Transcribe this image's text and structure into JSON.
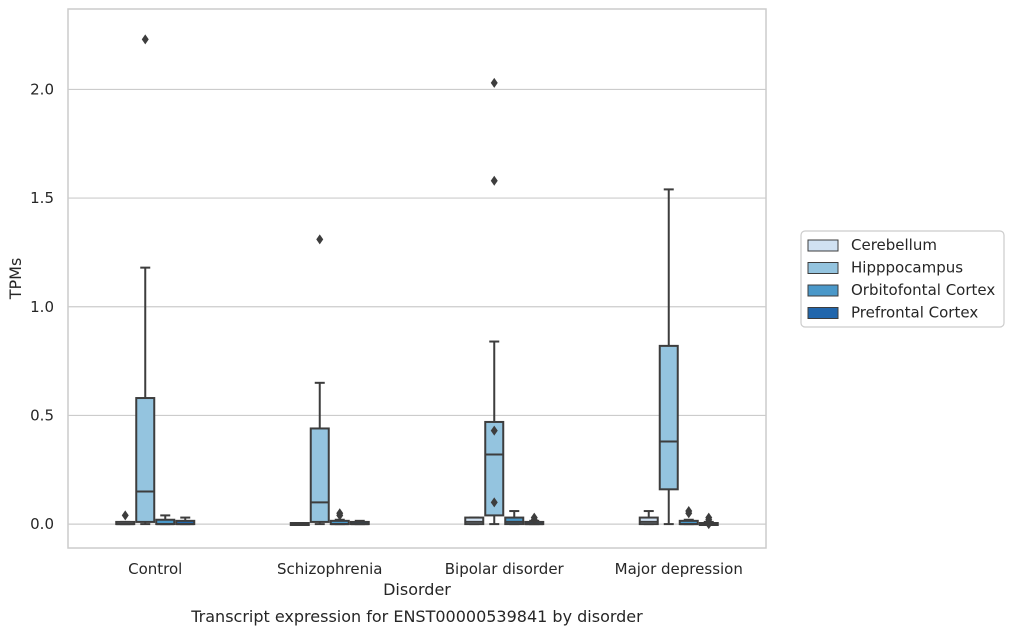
{
  "caption": "Transcript expression for ENST00000539841 by disorder",
  "chart_data": {
    "type": "box",
    "title": "",
    "xlabel": "Disorder",
    "ylabel": "TPMs",
    "ylim": [
      -0.11,
      2.37
    ],
    "yticks": [
      0.0,
      0.5,
      1.0,
      1.5,
      2.0
    ],
    "ytick_labels": [
      "0.0",
      "0.5",
      "1.0",
      "1.5",
      "2.0"
    ],
    "categories": [
      "Control",
      "Schizophrenia",
      "Bipolar disorder",
      "Major depression"
    ],
    "grid": "horizontal",
    "legend_position": "right",
    "series": [
      {
        "name": "Cerebellum",
        "color": "#d0e1f2",
        "boxes": [
          {
            "q1": 0.0,
            "median": 0.0,
            "q3": 0.01,
            "whisker_low": 0.0,
            "whisker_high": 0.01,
            "outliers": [
              0.04
            ]
          },
          {
            "q1": 0.0,
            "median": 0.0,
            "q3": 0.005,
            "whisker_low": 0.0,
            "whisker_high": 0.005,
            "outliers": []
          },
          {
            "q1": 0.0,
            "median": 0.01,
            "q3": 0.03,
            "whisker_low": 0.0,
            "whisker_high": 0.03,
            "outliers": []
          },
          {
            "q1": 0.0,
            "median": 0.01,
            "q3": 0.03,
            "whisker_low": 0.0,
            "whisker_high": 0.06,
            "outliers": []
          }
        ]
      },
      {
        "name": "Hipppocampus",
        "color": "#94c4df",
        "boxes": [
          {
            "q1": 0.01,
            "median": 0.15,
            "q3": 0.58,
            "whisker_low": 0.0,
            "whisker_high": 1.18,
            "outliers": [
              2.23
            ]
          },
          {
            "q1": 0.01,
            "median": 0.1,
            "q3": 0.44,
            "whisker_low": 0.0,
            "whisker_high": 0.65,
            "outliers": [
              1.31
            ]
          },
          {
            "q1": 0.04,
            "median": 0.32,
            "q3": 0.47,
            "whisker_low": 0.0,
            "whisker_high": 0.84,
            "outliers": [
              1.58,
              2.03,
              0.43,
              0.1
            ]
          },
          {
            "q1": 0.16,
            "median": 0.38,
            "q3": 0.82,
            "whisker_low": 0.0,
            "whisker_high": 1.54,
            "outliers": []
          }
        ]
      },
      {
        "name": "Orbitofontal Cortex",
        "color": "#4a98c9",
        "boxes": [
          {
            "q1": 0.0,
            "median": 0.0,
            "q3": 0.02,
            "whisker_low": 0.0,
            "whisker_high": 0.04,
            "outliers": []
          },
          {
            "q1": 0.0,
            "median": 0.0,
            "q3": 0.015,
            "whisker_low": 0.0,
            "whisker_high": 0.02,
            "outliers": [
              0.05,
              0.04
            ]
          },
          {
            "q1": 0.0,
            "median": 0.01,
            "q3": 0.03,
            "whisker_low": 0.0,
            "whisker_high": 0.06,
            "outliers": []
          },
          {
            "q1": 0.0,
            "median": 0.0,
            "q3": 0.015,
            "whisker_low": 0.0,
            "whisker_high": 0.02,
            "outliers": [
              0.06,
              0.05
            ]
          }
        ]
      },
      {
        "name": "Prefrontal Cortex",
        "color": "#2166ac",
        "boxes": [
          {
            "q1": 0.0,
            "median": 0.0,
            "q3": 0.015,
            "whisker_low": 0.0,
            "whisker_high": 0.03,
            "outliers": []
          },
          {
            "q1": 0.0,
            "median": 0.0,
            "q3": 0.01,
            "whisker_low": 0.0,
            "whisker_high": 0.015,
            "outliers": []
          },
          {
            "q1": 0.0,
            "median": 0.0,
            "q3": 0.01,
            "whisker_low": 0.0,
            "whisker_high": 0.015,
            "outliers": [
              0.03,
              0.02
            ]
          },
          {
            "q1": 0.0,
            "median": 0.0,
            "q3": 0.005,
            "whisker_low": 0.0,
            "whisker_high": 0.01,
            "outliers": [
              0.03,
              0.02,
              0.01,
              0.0
            ]
          }
        ]
      }
    ]
  }
}
